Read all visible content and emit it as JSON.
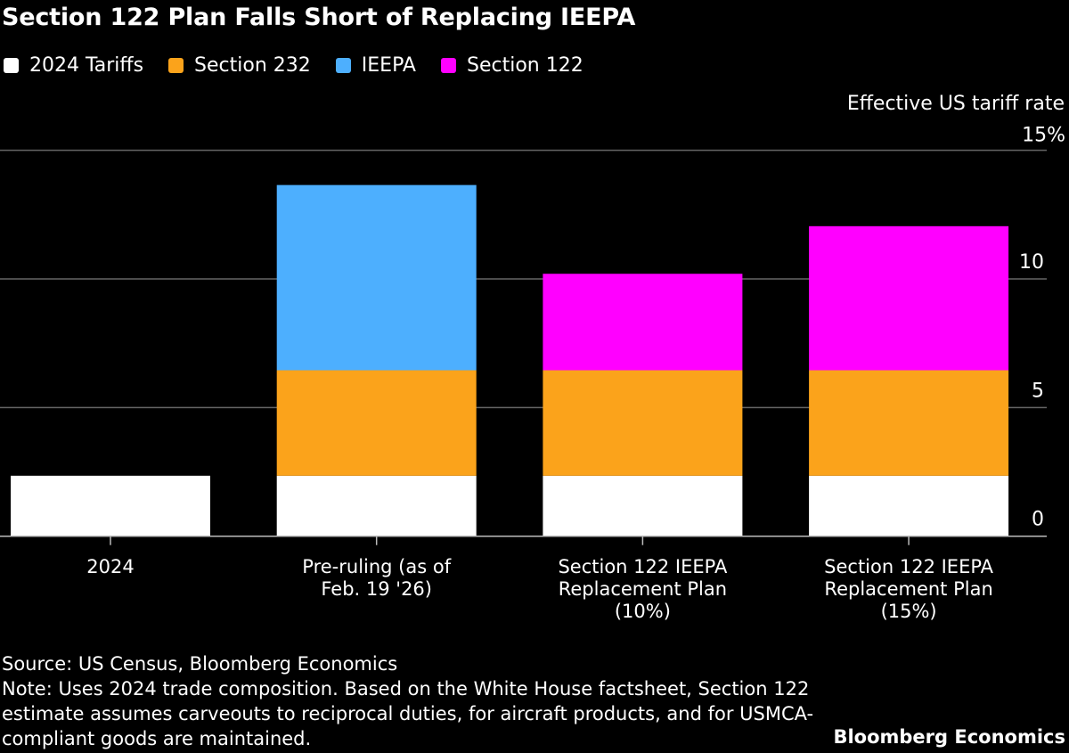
{
  "chart_data": {
    "type": "bar",
    "stacked": true,
    "title": "Section 122 Plan Falls Short of Replacing IEEPA",
    "ylabel": "Effective US tariff rate",
    "ylim": [
      0,
      15
    ],
    "yticks": [
      0,
      5,
      10,
      15
    ],
    "ytick_labels": [
      "0",
      "5",
      "10",
      "15%"
    ],
    "grid": true,
    "legend": "top-left",
    "categories": [
      [
        "2024"
      ],
      [
        "Pre-ruling (as of",
        "Feb. 19 '26)"
      ],
      [
        "Section 122 IEEPA",
        "Replacement Plan",
        "(10%)"
      ],
      [
        "Section 122 IEEPA",
        "Replacement Plan",
        "(15%)"
      ]
    ],
    "series": [
      {
        "name": "2024 Tariffs",
        "color": "#ffffff",
        "values": [
          2.35,
          2.35,
          2.35,
          2.35
        ]
      },
      {
        "name": "Section 232",
        "color": "#fba31b",
        "values": [
          0,
          4.1,
          4.1,
          4.1
        ]
      },
      {
        "name": "IEEPA",
        "color": "#4daffe",
        "values": [
          0,
          7.2,
          0,
          0
        ]
      },
      {
        "name": "Section 122",
        "color": "#ff00ff",
        "values": [
          0,
          0,
          3.75,
          5.6
        ]
      }
    ]
  },
  "footer": {
    "source": "Source: US Census, Bloomberg Economics",
    "note": "Note: Uses 2024 trade composition. Based on the White House factsheet, Section 122 estimate assumes carveouts to reciprocal duties, for aircraft products, and for USMCA-compliant goods are maintained.",
    "brand": "Bloomberg Economics"
  }
}
